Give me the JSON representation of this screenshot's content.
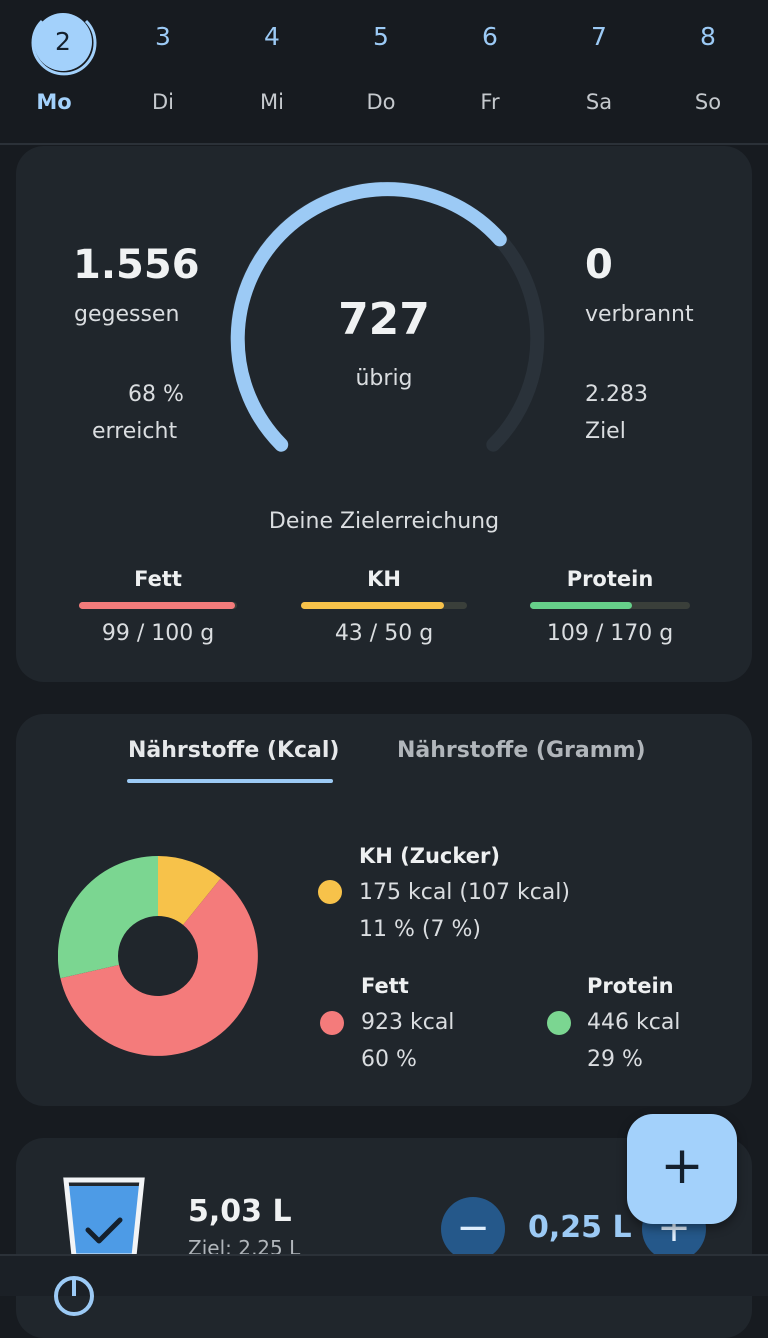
{
  "week": {
    "days": [
      {
        "num": "2",
        "name": "Mo"
      },
      {
        "num": "3",
        "name": "Di"
      },
      {
        "num": "4",
        "name": "Mi"
      },
      {
        "num": "5",
        "name": "Do"
      },
      {
        "num": "6",
        "name": "Fr"
      },
      {
        "num": "7",
        "name": "Sa"
      },
      {
        "num": "8",
        "name": "So"
      }
    ],
    "selected_index": 0
  },
  "summary": {
    "eaten_value": "1.556",
    "eaten_label": "gegessen",
    "reached_pct": "68 %",
    "reached_label": "erreicht",
    "remaining_value": "727",
    "remaining_label": "übrig",
    "burned_value": "0",
    "burned_label": "verbrannt",
    "goal_value": "2.283",
    "goal_label": "Ziel",
    "gauge_fraction": 0.68,
    "goal_title": "Deine Zielerreichung",
    "macros": [
      {
        "name": "Fett",
        "value": "99 / 100 g",
        "fraction": 0.99,
        "color": "#f47b7b"
      },
      {
        "name": "KH",
        "value": "43 / 50 g",
        "fraction": 0.86,
        "color": "#f7c24a"
      },
      {
        "name": "Protein",
        "value": "109 / 170 g",
        "fraction": 0.64,
        "color": "#66d08a"
      }
    ]
  },
  "nutrients": {
    "tab_kcal": "Nährstoffe (Kcal)",
    "tab_gramm": "Nährstoffe (Gramm)",
    "kh_title": "KH (Zucker)",
    "kh_kcal": "175 kcal (107 kcal)",
    "kh_pct": "11 % (7 %)",
    "fett_title": "Fett",
    "fett_kcal": "923 kcal",
    "fett_pct": "60 %",
    "protein_title": "Protein",
    "protein_kcal": "446 kcal",
    "protein_pct": "29 %",
    "colors": {
      "kh": "#f7c24a",
      "fett": "#f47b7b",
      "protein": "#7bd691"
    }
  },
  "water": {
    "amount": "5,03 L",
    "goal": "Ziel: 2,25 L",
    "step": "0,25 L",
    "minus_icon": "minus-icon",
    "plus_icon": "plus-icon"
  },
  "fab": {
    "icon": "plus-icon",
    "label": "+"
  },
  "colors": {
    "accent": "#a3d1fb",
    "card": "#20262c",
    "background": "#171b20"
  }
}
